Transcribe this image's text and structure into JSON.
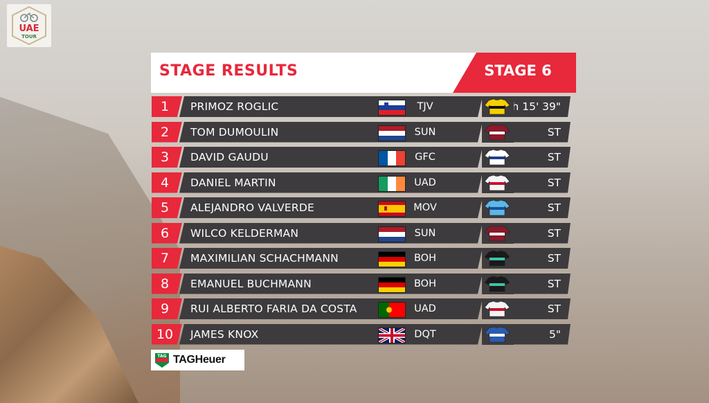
{
  "logo": {
    "text_top": "UAE",
    "text_bottom": "TOUR",
    "icon": "bicycle-icon"
  },
  "header": {
    "title": "STAGE RESULTS",
    "stage": "STAGE 6"
  },
  "colors": {
    "accent": "#e8283b",
    "row_bg": "#3d3b3d",
    "text": "#ffffff"
  },
  "results": [
    {
      "rank": "1",
      "name": "PRIMOZ ROGLIC",
      "flag": "SLO",
      "team": "TJV",
      "jersey": "yellow-black",
      "time": "4h 15' 39\""
    },
    {
      "rank": "2",
      "name": "TOM DUMOULIN",
      "flag": "NED",
      "team": "SUN",
      "jersey": "maroon",
      "time": "ST"
    },
    {
      "rank": "3",
      "name": "DAVID GAUDU",
      "flag": "FRA",
      "team": "GFC",
      "jersey": "white-blue-red",
      "time": "ST"
    },
    {
      "rank": "4",
      "name": "DANIEL MARTIN",
      "flag": "IRL",
      "team": "UAD",
      "jersey": "white-red",
      "time": "ST"
    },
    {
      "rank": "5",
      "name": "ALEJANDRO VALVERDE",
      "flag": "ESP",
      "team": "MOV",
      "jersey": "light-blue",
      "time": "ST"
    },
    {
      "rank": "6",
      "name": "WILCO KELDERMAN",
      "flag": "NED",
      "team": "SUN",
      "jersey": "maroon",
      "time": "ST"
    },
    {
      "rank": "7",
      "name": "MAXIMILIAN SCHACHMANN",
      "flag": "GER",
      "team": "BOH",
      "jersey": "black-teal",
      "time": "ST"
    },
    {
      "rank": "8",
      "name": "EMANUEL BUCHMANN",
      "flag": "GER",
      "team": "BOH",
      "jersey": "black-teal",
      "time": "ST"
    },
    {
      "rank": "9",
      "name": "RUI ALBERTO FARIA DA COSTA",
      "flag": "POR",
      "team": "UAD",
      "jersey": "white-red",
      "time": "ST"
    },
    {
      "rank": "10",
      "name": "JAMES KNOX",
      "flag": "GBR",
      "team": "DQT",
      "jersey": "blue-white",
      "time": "5\""
    }
  ],
  "sponsor": {
    "badge_text": "TAG",
    "name": "TAGHeuer"
  }
}
